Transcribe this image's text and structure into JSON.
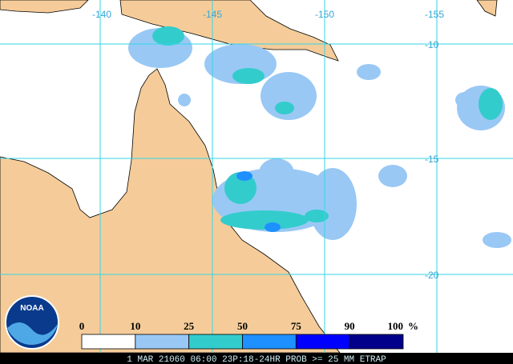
{
  "map": {
    "lon_labels": [
      "-140",
      "-145",
      "-150",
      "-155"
    ],
    "lat_labels": [
      "-10",
      "-15",
      "-20"
    ]
  },
  "legend": {
    "labels": [
      "0",
      "10",
      "25",
      "50",
      "75",
      "90",
      "100"
    ],
    "unit": "%",
    "colors": [
      "#ffffff",
      "#99c8f5",
      "#33cccc",
      "#1e90ff",
      "#0000ff",
      "#00008b"
    ]
  },
  "logo": "NOAA",
  "footer": "1 MAR 21060 06:00 23P:18-24HR PROB >= 25 MM ETRAP"
}
